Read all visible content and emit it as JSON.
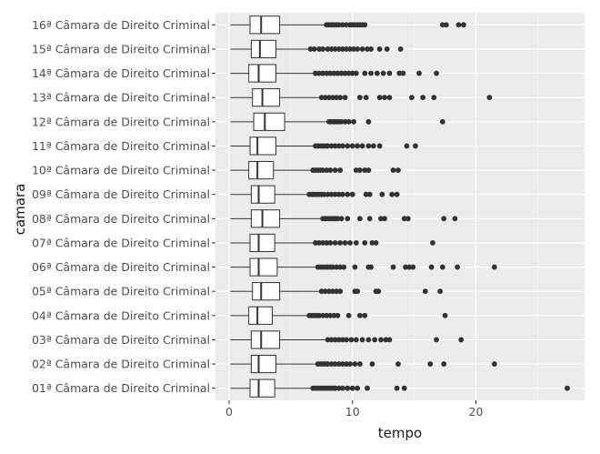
{
  "chart_data": {
    "type": "boxplot",
    "orientation": "horizontal",
    "xlabel": "tempo",
    "ylabel": "camara",
    "xlim": [
      -1.1,
      28.8
    ],
    "x_ticks": [
      0,
      10,
      20
    ],
    "grid": true,
    "legend": "none",
    "colors": {
      "panel": "#ebebeb",
      "grid_major": "#ffffff",
      "box_fill": "#ffffff",
      "box_stroke": "#333333",
      "outlier": "#333333"
    },
    "categories": [
      "01ª Câmara de Direito Criminal",
      "02ª Câmara de Direito Criminal",
      "03ª Câmara de Direito Criminal",
      "04ª Câmara de Direito Criminal",
      "05ª Câmara de Direito Criminal",
      "06ª Câmara de Direito Criminal",
      "07ª Câmara de Direito Criminal",
      "08ª Câmara de Direito Criminal",
      "09ª Câmara de Direito Criminal",
      "10ª Câmara de Direito Criminal",
      "11ª Câmara de Direito Criminal",
      "12ª Câmara de Direito Criminal",
      "13ª Câmara de Direito Criminal",
      "14ª Câmara de Direito Criminal",
      "15ª Câmara de Direito Criminal",
      "16ª Câmara de Direito Criminal"
    ],
    "boxes": [
      {
        "min": 0.1,
        "q1": 1.7,
        "median": 2.4,
        "q3": 3.7,
        "max": 6.6,
        "outliers": [
          6.8,
          7.0,
          7.2,
          7.4,
          7.6,
          7.8,
          8.0,
          8.2,
          8.4,
          8.6,
          8.9,
          9.2,
          9.6,
          10.0,
          10.4,
          11.2,
          13.6,
          14.2,
          27.4
        ]
      },
      {
        "min": 0.1,
        "q1": 1.8,
        "median": 2.4,
        "q3": 3.8,
        "max": 7.0,
        "outliers": [
          7.2,
          7.4,
          7.6,
          7.8,
          8.0,
          8.3,
          8.6,
          8.9,
          9.2,
          9.5,
          9.8,
          10.2,
          10.6,
          11.6,
          13.7,
          16.3,
          17.4,
          21.5
        ]
      },
      {
        "min": 0.1,
        "q1": 1.8,
        "median": 2.6,
        "q3": 4.1,
        "max": 7.8,
        "outliers": [
          8.0,
          8.3,
          8.6,
          8.9,
          9.2,
          9.5,
          9.9,
          10.3,
          10.8,
          11.3,
          11.8,
          12.3,
          12.7,
          13.0,
          16.8,
          18.8
        ]
      },
      {
        "min": 0.1,
        "q1": 1.6,
        "median": 2.3,
        "q3": 3.5,
        "max": 6.3,
        "outliers": [
          6.5,
          6.7,
          6.9,
          7.1,
          7.3,
          7.6,
          7.9,
          8.2,
          8.5,
          8.8,
          9.7,
          10.6,
          11.0,
          17.5
        ]
      },
      {
        "min": 0.1,
        "q1": 1.9,
        "median": 2.6,
        "q3": 4.1,
        "max": 7.3,
        "outliers": [
          7.5,
          7.8,
          8.1,
          8.4,
          8.7,
          9.0,
          10.2,
          10.4,
          11.9,
          12.1,
          15.9,
          17.1
        ]
      },
      {
        "min": 0.1,
        "q1": 1.7,
        "median": 2.4,
        "q3": 3.9,
        "max": 7.0,
        "outliers": [
          7.2,
          7.4,
          7.6,
          7.8,
          8.0,
          8.2,
          8.4,
          8.7,
          9.0,
          9.3,
          10.2,
          11.3,
          11.5,
          13.3,
          14.3,
          14.6,
          14.9,
          16.4,
          17.3,
          18.5,
          21.5
        ]
      },
      {
        "min": 0.1,
        "q1": 1.7,
        "median": 2.4,
        "q3": 3.7,
        "max": 6.8,
        "outliers": [
          7.0,
          7.3,
          7.6,
          7.9,
          8.2,
          8.6,
          9.0,
          9.4,
          9.8,
          10.3,
          11.0,
          11.6,
          11.9,
          16.5
        ]
      },
      {
        "min": 0.1,
        "q1": 1.8,
        "median": 2.7,
        "q3": 4.1,
        "max": 7.4,
        "outliers": [
          7.6,
          7.8,
          8.0,
          8.2,
          8.4,
          8.6,
          8.8,
          9.1,
          9.6,
          10.6,
          11.4,
          12.3,
          12.6,
          14.2,
          14.5,
          17.4,
          18.3
        ]
      },
      {
        "min": 0.1,
        "q1": 1.8,
        "median": 2.4,
        "q3": 3.7,
        "max": 6.3,
        "outliers": [
          6.5,
          6.7,
          6.9,
          7.1,
          7.3,
          7.5,
          7.7,
          8.0,
          8.3,
          8.6,
          8.9,
          9.2,
          9.6,
          10.0,
          11.1,
          11.4,
          12.4,
          13.2,
          13.6
        ]
      },
      {
        "min": 0.1,
        "q1": 1.6,
        "median": 2.3,
        "q3": 3.6,
        "max": 6.6,
        "outliers": [
          6.8,
          7.0,
          7.2,
          7.4,
          7.6,
          7.9,
          8.2,
          8.6,
          9.0,
          10.3,
          10.6,
          11.0,
          11.3,
          13.3,
          13.7
        ]
      },
      {
        "min": 0.1,
        "q1": 1.7,
        "median": 2.3,
        "q3": 3.8,
        "max": 6.8,
        "outliers": [
          7.0,
          7.2,
          7.4,
          7.6,
          7.8,
          8.0,
          8.3,
          8.6,
          8.9,
          9.2,
          9.6,
          10.0,
          10.4,
          10.8,
          11.3,
          11.7,
          12.2,
          14.4,
          15.1
        ]
      },
      {
        "min": 0.1,
        "q1": 2.0,
        "median": 2.9,
        "q3": 4.5,
        "max": 7.9,
        "outliers": [
          8.1,
          8.3,
          8.5,
          8.7,
          8.9,
          9.1,
          9.4,
          9.7,
          10.1,
          11.3,
          17.3
        ]
      },
      {
        "min": 0.1,
        "q1": 1.9,
        "median": 2.7,
        "q3": 4.1,
        "max": 7.3,
        "outliers": [
          7.5,
          7.8,
          8.1,
          8.4,
          8.7,
          9.0,
          9.4,
          10.6,
          11.1,
          12.2,
          12.6,
          13.0,
          14.8,
          15.7,
          16.6,
          21.1
        ]
      },
      {
        "min": 0.1,
        "q1": 1.6,
        "median": 2.4,
        "q3": 3.8,
        "max": 6.8,
        "outliers": [
          7.0,
          7.3,
          7.6,
          7.9,
          8.2,
          8.5,
          8.8,
          9.1,
          9.4,
          9.7,
          10.0,
          10.3,
          11.0,
          11.5,
          12.0,
          12.5,
          13.0,
          13.8,
          14.1,
          15.4,
          16.8
        ]
      },
      {
        "min": 0.1,
        "q1": 1.8,
        "median": 2.5,
        "q3": 3.8,
        "max": 6.4,
        "outliers": [
          6.6,
          6.9,
          7.3,
          7.6,
          8.0,
          8.3,
          8.6,
          8.9,
          9.2,
          9.5,
          9.8,
          10.1,
          10.4,
          10.8,
          11.2,
          11.5,
          12.2,
          12.8,
          13.9
        ]
      },
      {
        "min": 0.1,
        "q1": 1.7,
        "median": 2.6,
        "q3": 4.1,
        "max": 7.7,
        "outliers": [
          7.9,
          8.1,
          8.3,
          8.5,
          8.7,
          8.9,
          9.2,
          9.5,
          9.8,
          10.0,
          10.2,
          10.4,
          10.6,
          10.8,
          11.0,
          17.3,
          17.6,
          18.6,
          19.0
        ]
      }
    ]
  }
}
